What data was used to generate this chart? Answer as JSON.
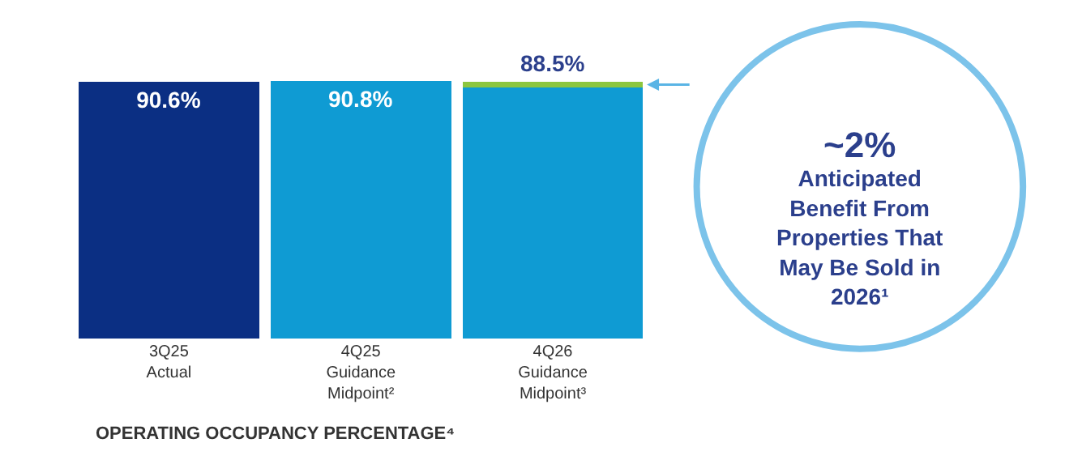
{
  "chart_data": {
    "type": "bar",
    "stacked": true,
    "xlabel": "OPERATING OCCUPANCY PERCENTAGE⁴",
    "categories": [
      "3Q25\nActual",
      "4Q25\nGuidance\nMidpoint²",
      "4Q26\nGuidance\nMidpoint³"
    ],
    "series": [
      {
        "colors": [
          "#0b2f83",
          "#0f9bd3",
          "#0f9bd3"
        ],
        "values": [
          90.6,
          90.8,
          88.5
        ],
        "value_labels": [
          "90.6%",
          "90.8%",
          "88.5%"
        ]
      },
      {
        "color": "#8cc63f",
        "values": [
          null,
          null,
          2
        ]
      }
    ],
    "annotations": [
      "~2%\nAnticipated\nBenefit From\nProperties That\nMay Be Sold in\n2026¹"
    ]
  }
}
